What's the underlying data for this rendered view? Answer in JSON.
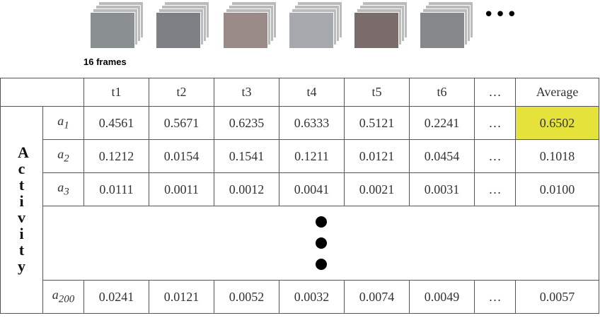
{
  "frames": {
    "caption": "16 frames",
    "more": "•••"
  },
  "table": {
    "group_label": "Activity",
    "columns": [
      "t1",
      "t2",
      "t3",
      "t4",
      "t5",
      "t6",
      "…",
      "Average"
    ],
    "rows": [
      {
        "label": "a",
        "subscript": "1",
        "cells": [
          "0.4561",
          "0.5671",
          "0.6235",
          "0.6333",
          "0.5121",
          "0.2241",
          "…",
          "0.6502"
        ],
        "highlight": true
      },
      {
        "label": "a",
        "subscript": "2",
        "cells": [
          "0.1212",
          "0.0154",
          "0.1541",
          "0.1211",
          "0.0121",
          "0.0454",
          "…",
          "0.1018"
        ],
        "highlight": false
      },
      {
        "label": "a",
        "subscript": "3",
        "cells": [
          "0.0111",
          "0.0011",
          "0.0012",
          "0.0041",
          "0.0021",
          "0.0031",
          "…",
          "0.0100"
        ],
        "highlight": false
      },
      {
        "label": "a",
        "subscript": "200",
        "cells": [
          "0.0241",
          "0.0121",
          "0.0052",
          "0.0032",
          "0.0074",
          "0.0049",
          "…",
          "0.0057"
        ],
        "highlight": false
      }
    ],
    "highlight_color": "#e6e23c"
  }
}
